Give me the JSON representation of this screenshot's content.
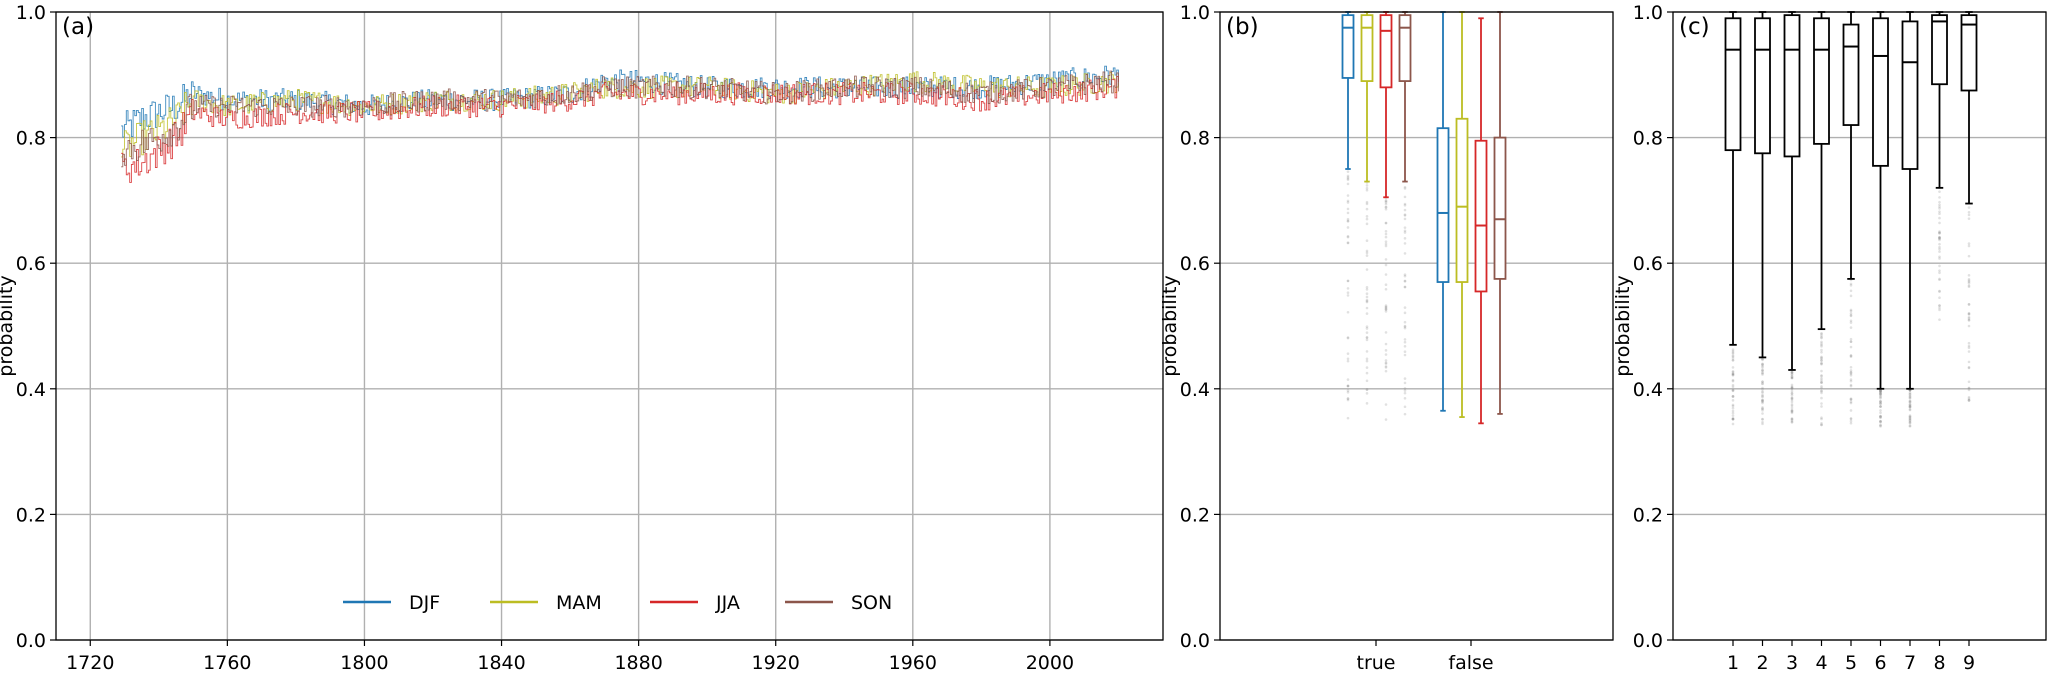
{
  "chart_data": [
    {
      "panel_label": "(a)",
      "type": "line",
      "ylabel": "probability",
      "ylim": [
        0.0,
        1.0
      ],
      "xlim": [
        1720,
        2020
      ],
      "grid": true,
      "xticks": [
        "1720",
        "1760",
        "1800",
        "1840",
        "1880",
        "1920",
        "1960",
        "2000"
      ],
      "yticks": [
        "0.0",
        "0.2",
        "0.4",
        "0.6",
        "0.8",
        "1.0"
      ],
      "legend": {
        "placement": "lower-center",
        "entries": [
          "DJF",
          "MAM",
          "JJA",
          "SON"
        ]
      },
      "series": [
        {
          "name": "DJF",
          "color": "#1f77b4",
          "x": [
            1729,
            1735,
            1740,
            1745,
            1750,
            1760,
            1780,
            1800,
            1820,
            1840,
            1860,
            1870,
            1880,
            1900,
            1920,
            1940,
            1960,
            1980,
            2000,
            2020
          ],
          "values": [
            0.81,
            0.83,
            0.84,
            0.85,
            0.87,
            0.86,
            0.86,
            0.85,
            0.86,
            0.86,
            0.87,
            0.89,
            0.89,
            0.88,
            0.88,
            0.88,
            0.88,
            0.88,
            0.89,
            0.9
          ]
        },
        {
          "name": "MAM",
          "color": "#bcbd22",
          "x": [
            1729,
            1735,
            1740,
            1745,
            1750,
            1760,
            1780,
            1800,
            1820,
            1840,
            1860,
            1870,
            1880,
            1900,
            1920,
            1940,
            1960,
            1980,
            2000,
            2020
          ],
          "values": [
            0.78,
            0.8,
            0.81,
            0.83,
            0.86,
            0.85,
            0.86,
            0.85,
            0.86,
            0.86,
            0.87,
            0.88,
            0.88,
            0.88,
            0.87,
            0.88,
            0.89,
            0.88,
            0.88,
            0.89
          ]
        },
        {
          "name": "JJA",
          "color": "#d62728",
          "x": [
            1729,
            1735,
            1740,
            1745,
            1750,
            1760,
            1780,
            1800,
            1820,
            1840,
            1860,
            1870,
            1880,
            1900,
            1920,
            1940,
            1960,
            1980,
            2000,
            2020
          ],
          "values": [
            0.75,
            0.76,
            0.78,
            0.8,
            0.84,
            0.83,
            0.84,
            0.84,
            0.85,
            0.85,
            0.86,
            0.87,
            0.87,
            0.87,
            0.87,
            0.87,
            0.87,
            0.86,
            0.87,
            0.88
          ]
        },
        {
          "name": "SON",
          "color": "#8c564b",
          "x": [
            1729,
            1735,
            1740,
            1745,
            1750,
            1760,
            1780,
            1800,
            1820,
            1840,
            1860,
            1870,
            1880,
            1900,
            1920,
            1940,
            1960,
            1980,
            2000,
            2020
          ],
          "values": [
            0.78,
            0.79,
            0.8,
            0.82,
            0.85,
            0.85,
            0.85,
            0.85,
            0.86,
            0.86,
            0.87,
            0.88,
            0.88,
            0.88,
            0.87,
            0.88,
            0.88,
            0.87,
            0.88,
            0.89
          ]
        }
      ]
    },
    {
      "panel_label": "(b)",
      "type": "box",
      "ylabel": "probability",
      "ylim": [
        0.0,
        1.0
      ],
      "grid": "y",
      "yticks": [
        "0.0",
        "0.2",
        "0.4",
        "0.6",
        "0.8",
        "1.0"
      ],
      "categories": [
        "true",
        "false"
      ],
      "series": [
        {
          "name": "DJF",
          "color": "#1f77b4",
          "boxes": [
            {
              "whisker_low": 0.75,
              "q1": 0.895,
              "median": 0.975,
              "q3": 0.995,
              "whisker_high": 1.0,
              "outliers_min": 0.35
            },
            {
              "whisker_low": 0.365,
              "q1": 0.57,
              "median": 0.68,
              "q3": 0.815,
              "whisker_high": 1.0
            }
          ]
        },
        {
          "name": "MAM",
          "color": "#bcbd22",
          "boxes": [
            {
              "whisker_low": 0.73,
              "q1": 0.89,
              "median": 0.975,
              "q3": 0.995,
              "whisker_high": 1.0,
              "outliers_min": 0.35
            },
            {
              "whisker_low": 0.355,
              "q1": 0.57,
              "median": 0.69,
              "q3": 0.83,
              "whisker_high": 1.0
            }
          ]
        },
        {
          "name": "JJA",
          "color": "#d62728",
          "boxes": [
            {
              "whisker_low": 0.705,
              "q1": 0.88,
              "median": 0.97,
              "q3": 0.995,
              "whisker_high": 1.0,
              "outliers_min": 0.35
            },
            {
              "whisker_low": 0.345,
              "q1": 0.555,
              "median": 0.66,
              "q3": 0.795,
              "whisker_high": 0.99
            }
          ]
        },
        {
          "name": "SON",
          "color": "#8c564b",
          "boxes": [
            {
              "whisker_low": 0.73,
              "q1": 0.89,
              "median": 0.975,
              "q3": 0.995,
              "whisker_high": 1.0,
              "outliers_min": 0.35
            },
            {
              "whisker_low": 0.36,
              "q1": 0.575,
              "median": 0.67,
              "q3": 0.8,
              "whisker_high": 1.0
            }
          ]
        }
      ]
    },
    {
      "panel_label": "(c)",
      "type": "box",
      "ylabel": "probability",
      "ylim": [
        0.0,
        1.0
      ],
      "grid": "y",
      "yticks": [
        "0.0",
        "0.2",
        "0.4",
        "0.6",
        "0.8",
        "1.0"
      ],
      "categories": [
        "1",
        "2",
        "3",
        "4",
        "5",
        "6",
        "7",
        "8",
        "9"
      ],
      "color": "#000000",
      "boxes": [
        {
          "whisker_low": 0.47,
          "q1": 0.78,
          "median": 0.94,
          "q3": 0.99,
          "whisker_high": 1.0,
          "outliers_min": 0.34
        },
        {
          "whisker_low": 0.45,
          "q1": 0.775,
          "median": 0.94,
          "q3": 0.99,
          "whisker_high": 1.0,
          "outliers_min": 0.34
        },
        {
          "whisker_low": 0.43,
          "q1": 0.77,
          "median": 0.94,
          "q3": 0.995,
          "whisker_high": 1.0,
          "outliers_min": 0.34
        },
        {
          "whisker_low": 0.495,
          "q1": 0.79,
          "median": 0.94,
          "q3": 0.99,
          "whisker_high": 1.0,
          "outliers_min": 0.34
        },
        {
          "whisker_low": 0.575,
          "q1": 0.82,
          "median": 0.945,
          "q3": 0.98,
          "whisker_high": 1.0,
          "outliers_min": 0.34
        },
        {
          "whisker_low": 0.4,
          "q1": 0.755,
          "median": 0.93,
          "q3": 0.99,
          "whisker_high": 1.0,
          "outliers_min": 0.34
        },
        {
          "whisker_low": 0.4,
          "q1": 0.75,
          "median": 0.92,
          "q3": 0.985,
          "whisker_high": 1.0,
          "outliers_min": 0.34
        },
        {
          "whisker_low": 0.72,
          "q1": 0.885,
          "median": 0.985,
          "q3": 0.995,
          "whisker_high": 1.0,
          "outliers_min": 0.5
        },
        {
          "whisker_low": 0.695,
          "q1": 0.875,
          "median": 0.98,
          "q3": 0.995,
          "whisker_high": 1.0,
          "outliers_min": 0.38
        }
      ]
    }
  ]
}
